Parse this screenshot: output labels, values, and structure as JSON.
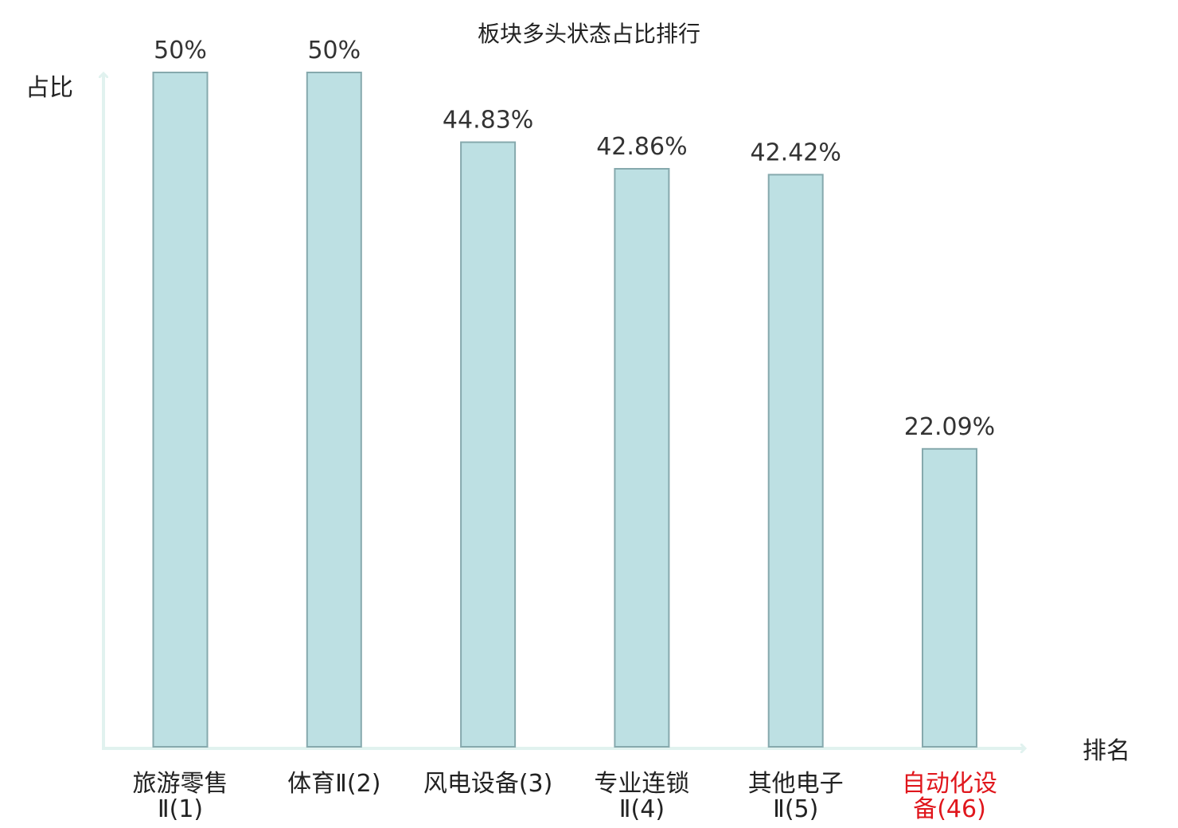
{
  "chart_data": {
    "type": "bar",
    "title": "板块多头状态占比排行",
    "ylabel": "占比",
    "xlabel": "排名",
    "categories": [
      {
        "lines": [
          "旅游零售",
          "Ⅱ(1)"
        ],
        "highlight": false
      },
      {
        "lines": [
          "体育Ⅱ(2)"
        ],
        "highlight": false
      },
      {
        "lines": [
          "风电设备(3)"
        ],
        "highlight": false
      },
      {
        "lines": [
          "专业连锁",
          "Ⅱ(4)"
        ],
        "highlight": false
      },
      {
        "lines": [
          "其他电子",
          "Ⅱ(5)"
        ],
        "highlight": false
      },
      {
        "lines": [
          "自动化设",
          "备(46)"
        ],
        "highlight": true
      }
    ],
    "values": [
      50,
      50,
      44.83,
      42.86,
      42.42,
      22.09
    ],
    "value_labels": [
      "50%",
      "50%",
      "44.83%",
      "42.86%",
      "42.42%",
      "22.09%"
    ],
    "ylim": [
      0,
      50
    ],
    "grid": false,
    "legend": "none",
    "colors": {
      "bar_fill": "#bde0e3",
      "bar_stroke": "#86a9ad",
      "axis": "#e1f2ef",
      "highlight_label": "#e0161c"
    }
  }
}
